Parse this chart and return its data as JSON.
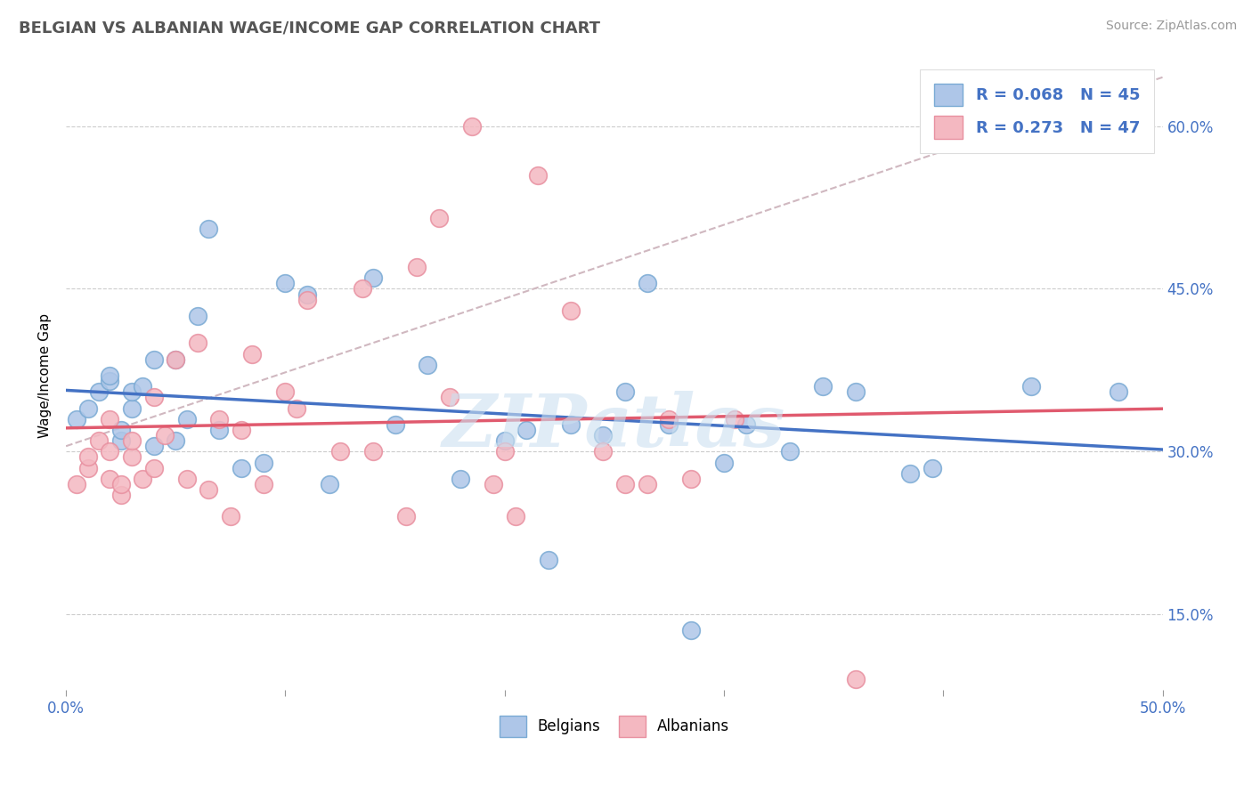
{
  "title": "BELGIAN VS ALBANIAN WAGE/INCOME GAP CORRELATION CHART",
  "source": "Source: ZipAtlas.com",
  "ylabel": "Wage/Income Gap",
  "xlim": [
    0.0,
    0.5
  ],
  "ylim": [
    0.08,
    0.66
  ],
  "y_ticks": [
    0.15,
    0.3,
    0.45,
    0.6
  ],
  "y_tick_labels": [
    "15.0%",
    "30.0%",
    "45.0%",
    "60.0%"
  ],
  "belgian_R": 0.068,
  "belgian_N": 45,
  "albanian_R": 0.273,
  "albanian_N": 47,
  "belgian_color": "#aec6e8",
  "albanian_color": "#f4b8c1",
  "belgian_edge_color": "#7aaad4",
  "albanian_edge_color": "#e890a0",
  "belgian_line_color": "#4472c4",
  "albanian_line_color": "#e05a6e",
  "trend_line_color": "#d0b8c0",
  "legend_text_color": "#4472c4",
  "watermark": "ZIPatlas",
  "belgians_x": [
    0.005,
    0.01,
    0.015,
    0.02,
    0.02,
    0.025,
    0.025,
    0.03,
    0.03,
    0.035,
    0.04,
    0.04,
    0.05,
    0.05,
    0.055,
    0.06,
    0.065,
    0.07,
    0.08,
    0.09,
    0.1,
    0.11,
    0.12,
    0.14,
    0.15,
    0.165,
    0.18,
    0.2,
    0.21,
    0.22,
    0.23,
    0.245,
    0.255,
    0.265,
    0.275,
    0.285,
    0.3,
    0.31,
    0.33,
    0.345,
    0.36,
    0.385,
    0.395,
    0.44,
    0.48
  ],
  "belgians_y": [
    0.33,
    0.34,
    0.355,
    0.365,
    0.37,
    0.31,
    0.32,
    0.34,
    0.355,
    0.36,
    0.305,
    0.385,
    0.31,
    0.385,
    0.33,
    0.425,
    0.505,
    0.32,
    0.285,
    0.29,
    0.455,
    0.445,
    0.27,
    0.46,
    0.325,
    0.38,
    0.275,
    0.31,
    0.32,
    0.2,
    0.325,
    0.315,
    0.355,
    0.455,
    0.325,
    0.135,
    0.29,
    0.325,
    0.3,
    0.36,
    0.355,
    0.28,
    0.285,
    0.36,
    0.355
  ],
  "albanians_x": [
    0.005,
    0.01,
    0.01,
    0.015,
    0.02,
    0.02,
    0.02,
    0.025,
    0.025,
    0.03,
    0.03,
    0.035,
    0.04,
    0.04,
    0.045,
    0.05,
    0.055,
    0.06,
    0.065,
    0.07,
    0.075,
    0.08,
    0.085,
    0.09,
    0.1,
    0.105,
    0.11,
    0.125,
    0.135,
    0.14,
    0.155,
    0.16,
    0.17,
    0.175,
    0.185,
    0.195,
    0.2,
    0.205,
    0.215,
    0.23,
    0.245,
    0.255,
    0.265,
    0.275,
    0.285,
    0.305,
    0.36
  ],
  "albanians_y": [
    0.27,
    0.285,
    0.295,
    0.31,
    0.275,
    0.3,
    0.33,
    0.26,
    0.27,
    0.295,
    0.31,
    0.275,
    0.285,
    0.35,
    0.315,
    0.385,
    0.275,
    0.4,
    0.265,
    0.33,
    0.24,
    0.32,
    0.39,
    0.27,
    0.355,
    0.34,
    0.44,
    0.3,
    0.45,
    0.3,
    0.24,
    0.47,
    0.515,
    0.35,
    0.6,
    0.27,
    0.3,
    0.24,
    0.555,
    0.43,
    0.3,
    0.27,
    0.27,
    0.33,
    0.275,
    0.33,
    0.09
  ]
}
